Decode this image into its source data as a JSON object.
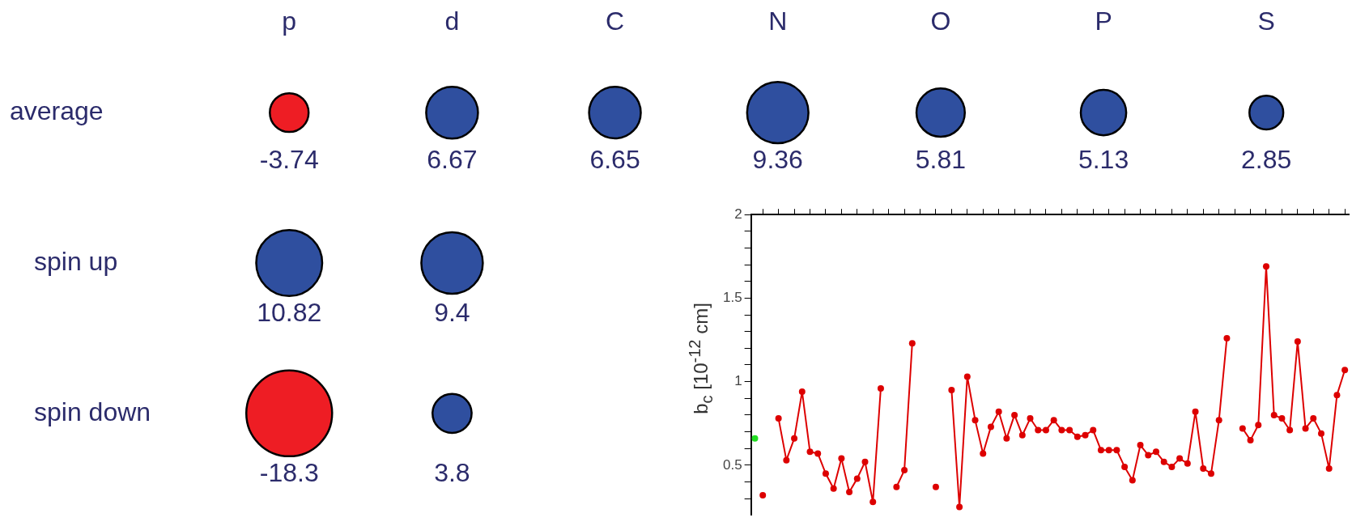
{
  "chart_data": [
    {
      "type": "other",
      "categories": [
        "p",
        "d",
        "C",
        "N",
        "O",
        "P",
        "S"
      ],
      "series": [
        {
          "name": "average",
          "values": [
            -3.74,
            6.67,
            6.65,
            9.36,
            5.81,
            5.13,
            2.85
          ],
          "colors": [
            "#ee1d24",
            "#2f4f9f",
            "#2f4f9f",
            "#2f4f9f",
            "#2f4f9f",
            "#2f4f9f",
            "#2f4f9f"
          ]
        },
        {
          "name": "spin up",
          "values": [
            10.82,
            9.4,
            null,
            null,
            null,
            null,
            null
          ],
          "colors": [
            "#2f4f9f",
            "#2f4f9f",
            null,
            null,
            null,
            null,
            null
          ]
        },
        {
          "name": "spin down",
          "values": [
            -18.3,
            3.8,
            null,
            null,
            null,
            null,
            null
          ],
          "colors": [
            "#ee1d24",
            "#2f4f9f",
            null,
            null,
            null,
            null,
            null
          ]
        }
      ],
      "data_labels": true
    },
    {
      "type": "line",
      "ylabel": "b$_{c}$ [10$^{-12}$ cm]",
      "categories": [
        null,
        null,
        null,
        null,
        null,
        null,
        null,
        null,
        null,
        null,
        null,
        null,
        null,
        null,
        null,
        null,
        null,
        null,
        null,
        null,
        null,
        null,
        null,
        null,
        null,
        null,
        null,
        null,
        null,
        null,
        null,
        null,
        null,
        null,
        null,
        null,
        null,
        null,
        null,
        null,
        null,
        null,
        null,
        null,
        null,
        null,
        null,
        null,
        null,
        null,
        null,
        null,
        null,
        null,
        null,
        null,
        null,
        null,
        null,
        null,
        null,
        null,
        null,
        null,
        null,
        null,
        null,
        null,
        null,
        null,
        null,
        null,
        null,
        null,
        null,
        null
      ],
      "series": [
        {
          "color": "#dd0000",
          "values": [
            null,
            0.32,
            null,
            0.78,
            0.53,
            0.66,
            0.94,
            0.58,
            0.57,
            0.45,
            0.36,
            0.54,
            0.34,
            0.42,
            0.52,
            0.28,
            0.96,
            null,
            0.37,
            0.47,
            1.23,
            null,
            null,
            0.37,
            null,
            0.95,
            0.25,
            1.03,
            0.77,
            0.57,
            0.73,
            0.82,
            0.66,
            0.8,
            0.68,
            0.78,
            0.71,
            0.71,
            0.77,
            0.71,
            0.71,
            0.67,
            0.68,
            0.71,
            0.59,
            0.59,
            0.59,
            0.49,
            0.41,
            0.62,
            0.56,
            0.58,
            0.52,
            0.49,
            0.54,
            0.51,
            0.82,
            0.48,
            0.45,
            0.77,
            1.26,
            null,
            0.72,
            0.65,
            0.74,
            1.69,
            0.8,
            0.78,
            0.71,
            1.24,
            0.72,
            0.78,
            0.69,
            0.48,
            0.92,
            1.07
          ]
        },
        {
          "type": "scatter",
          "color": "#22dd22",
          "values": [
            0.66,
            null,
            null,
            null,
            null,
            null,
            null,
            null,
            null,
            null,
            null,
            null,
            null,
            null,
            null,
            null,
            null,
            null,
            null,
            null,
            null,
            null,
            null,
            null,
            null,
            null,
            null,
            null,
            null,
            null,
            null,
            null,
            null,
            null,
            null,
            null,
            null,
            null,
            null,
            null,
            null,
            null,
            null,
            null,
            null,
            null,
            null,
            null,
            null,
            null,
            null,
            null,
            null,
            null,
            null,
            null,
            null,
            null,
            null,
            null,
            null,
            null,
            null,
            null,
            null,
            null,
            null,
            null,
            null,
            null,
            null,
            null,
            null,
            null,
            null,
            null
          ]
        }
      ],
      "ylim": [
        0.2,
        2
      ],
      "yticks": [
        {
          "value": 0.3,
          "label": null
        },
        {
          "value": 0.4,
          "label": null
        },
        {
          "value": 0.5,
          "label": "0.5"
        },
        {
          "value": 0.6,
          "label": null
        },
        {
          "value": 0.7,
          "label": null
        },
        {
          "value": 0.8,
          "label": null
        },
        {
          "value": 0.9,
          "label": null
        },
        1,
        {
          "value": 1.1,
          "label": null
        },
        {
          "value": 1.2,
          "label": null
        },
        {
          "value": 1.3,
          "label": null
        },
        {
          "value": 1.4,
          "label": null
        },
        1.5,
        {
          "value": 1.6,
          "label": null
        },
        {
          "value": 1.7,
          "label": null
        },
        {
          "value": 1.8,
          "label": null
        },
        {
          "value": 1.9,
          "label": null
        },
        2
      ],
      "grid": false,
      "marker": "circle",
      "line_style": "solid"
    }
  ]
}
